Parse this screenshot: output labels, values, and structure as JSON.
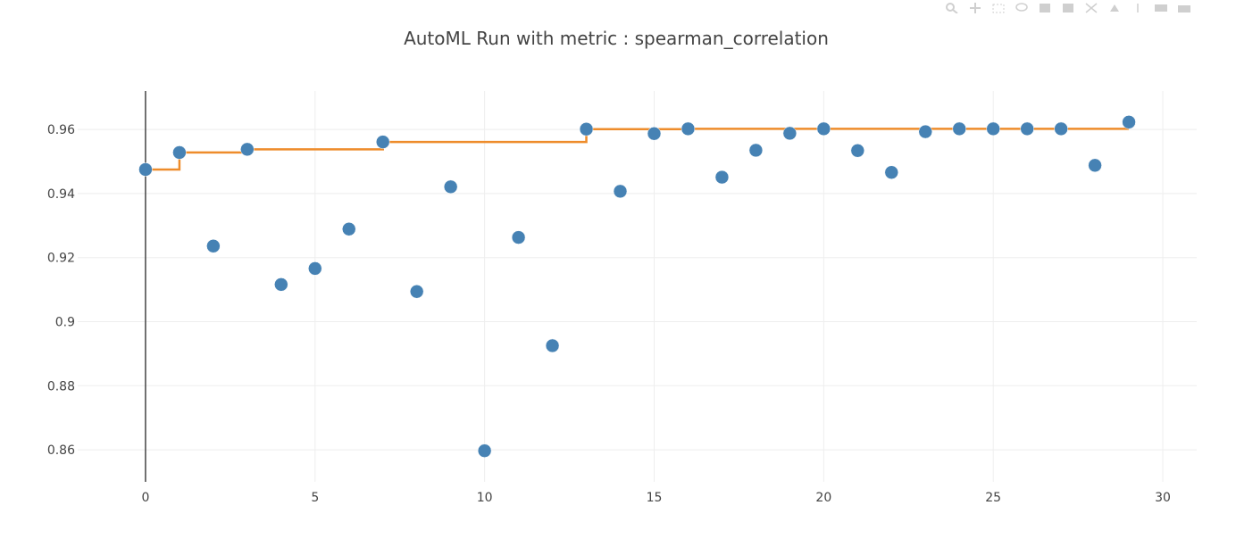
{
  "chart_data": {
    "type": "scatter",
    "title": "AutoML Run with metric : spearman_correlation",
    "xlabel": "",
    "ylabel": "",
    "xlim": [
      -2,
      31
    ],
    "ylim": [
      0.85,
      0.972
    ],
    "x_ticks": [
      0,
      5,
      10,
      15,
      20,
      25,
      30
    ],
    "x_tick_labels": [
      "0",
      "5",
      "10",
      "15",
      "20",
      "25",
      "30"
    ],
    "y_ticks": [
      0.86,
      0.88,
      0.9,
      0.92,
      0.94,
      0.96
    ],
    "y_tick_labels": [
      "0.86",
      "0.88",
      "0.9",
      "0.92",
      "0.94",
      "0.96"
    ],
    "grid": true,
    "series": [
      {
        "kind": "markers",
        "color": "#4682b4",
        "x": [
          0,
          1,
          2,
          3,
          4,
          5,
          6,
          7,
          8,
          9,
          10,
          11,
          12,
          13,
          14,
          15,
          16,
          17,
          18,
          19,
          20,
          21,
          22,
          23,
          24,
          25,
          26,
          27,
          28,
          29
        ],
        "y": [
          0.9475,
          0.9528,
          0.9236,
          0.9538,
          0.9116,
          0.9166,
          0.9289,
          0.9561,
          0.9094,
          0.9421,
          0.8597,
          0.9263,
          0.8925,
          0.9601,
          0.9407,
          0.9587,
          0.9602,
          0.9451,
          0.9535,
          0.9588,
          0.9602,
          0.9534,
          0.9466,
          0.9593,
          0.9602,
          0.9602,
          0.9602,
          0.9602,
          0.9488,
          0.9623
        ]
      },
      {
        "kind": "step-line",
        "color": "#ee8c2b",
        "x": [
          0,
          1,
          2,
          3,
          4,
          5,
          6,
          7,
          8,
          9,
          10,
          11,
          12,
          13,
          14,
          15,
          16,
          17,
          18,
          19,
          20,
          21,
          22,
          23,
          24,
          25,
          26,
          27,
          28,
          29
        ],
        "y": [
          0.9475,
          0.9528,
          0.9528,
          0.9538,
          0.9538,
          0.9538,
          0.9538,
          0.9561,
          0.9561,
          0.9561,
          0.9561,
          0.9561,
          0.9561,
          0.9601,
          0.9601,
          0.9601,
          0.9602,
          0.9602,
          0.9602,
          0.9602,
          0.9602,
          0.9602,
          0.9602,
          0.9602,
          0.9602,
          0.9602,
          0.9602,
          0.9602,
          0.9602,
          0.9602
        ]
      }
    ]
  },
  "colors": {
    "grid": "#eeeeee",
    "zeroline": "#444444",
    "text": "#444444"
  },
  "icons": [
    "zoom-icon",
    "pan-icon",
    "box-select-icon",
    "lasso-icon",
    "zoom-in-icon",
    "zoom-out-icon",
    "autoscale-icon",
    "reset-axes-icon",
    "spike-icon",
    "hover-closest-icon",
    "hover-compare-icon"
  ]
}
